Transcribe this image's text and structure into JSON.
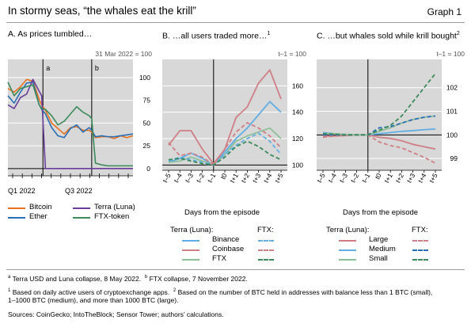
{
  "header": {
    "title": "In stormy seas, “the whales eat the krill”",
    "graph_number": "Graph 1"
  },
  "panels": {
    "a": {
      "title": "A. As prices tumbled…",
      "unit": "31 Mar 2022 = 100"
    },
    "b": {
      "title": "B. …all users traded more…",
      "title_sup": "1",
      "unit": "t–1 = 100",
      "xlabel": "Days from the episode"
    },
    "c": {
      "title": "C. …but whales sold while krill bought",
      "title_sup": "2",
      "unit": "t–1 = 100",
      "xlabel": "Days from the episode"
    }
  },
  "legends": {
    "a": [
      {
        "label": "Bitcoin",
        "color": "#e8711e"
      },
      {
        "label": "Terra (Luna)",
        "color": "#6a3d9a"
      },
      {
        "label": "Ether",
        "color": "#2a6fb5"
      },
      {
        "label": "FTX-token",
        "color": "#3a8a5a"
      }
    ],
    "b": {
      "group_label": "Terra (Luna):",
      "ftx_label": "FTX:",
      "items": [
        {
          "label": "Binance",
          "color": "#62aee3"
        },
        {
          "label": "Coinbase",
          "color": "#cf7f86"
        },
        {
          "label": "FTX",
          "color": "#8fbf99"
        }
      ]
    },
    "c": {
      "group_label": "Terra (Luna):",
      "ftx_label": "FTX:",
      "items": [
        {
          "label": "Large",
          "color": "#cf7f86"
        },
        {
          "label": "Medium",
          "color": "#62aee3"
        },
        {
          "label": "Small",
          "color": "#8fbf99"
        }
      ]
    }
  },
  "notes": {
    "a_mark": "a",
    "a_text": "Terra USD and Luna collapse, 8 May 2022.",
    "b_mark": "b",
    "b_text": "FTX collapse, 7 November 2022.",
    "n1_mark": "1",
    "n1_text": "Based on daily active users of cryptoexchange apps.",
    "n2_mark": "2",
    "n2_text": "Based on the number of BTC held in addresses with balance less than 1 BTC (small),",
    "n2_text2": "1–1000 BTC (medium), and more than 1000 BTC (large).",
    "sources": "Sources: CoinGecko; IntoTheBlock; Sensor Tower; authors’ calculations."
  },
  "chart_data": [
    {
      "type": "line",
      "title": "A. As prices tumbled…",
      "unit": "31 Mar 2022 = 100",
      "x_tick_labels": [
        "Q1 2022",
        "Q3 2022"
      ],
      "ylim": [
        -8,
        120
      ],
      "y_ticks": [
        0,
        25,
        50,
        75,
        100
      ],
      "grid": true,
      "event_lines": [
        {
          "label": "a",
          "x": 0.28
        },
        {
          "label": "b",
          "x": 0.67
        }
      ],
      "x": [
        0,
        0.05,
        0.1,
        0.15,
        0.2,
        0.25,
        0.27,
        0.3,
        0.35,
        0.4,
        0.45,
        0.5,
        0.55,
        0.6,
        0.65,
        0.67,
        0.7,
        0.75,
        0.8,
        0.85,
        0.9,
        0.95,
        1.0
      ],
      "series": [
        {
          "name": "Bitcoin",
          "color": "#e8711e",
          "values": [
            88,
            84,
            90,
            98,
            96,
            76,
            70,
            64,
            50,
            44,
            38,
            45,
            46,
            42,
            42,
            40,
            34,
            35,
            35,
            33,
            36,
            34,
            36
          ]
        },
        {
          "name": "Ether",
          "color": "#2a6fb5",
          "values": [
            80,
            72,
            84,
            94,
            95,
            70,
            65,
            60,
            45,
            36,
            34,
            44,
            48,
            40,
            45,
            42,
            35,
            36,
            35,
            35,
            36,
            37,
            38
          ]
        },
        {
          "name": "Terra (Luna)",
          "color": "#6a3d9a",
          "values": [
            70,
            66,
            78,
            82,
            98,
            85,
            80,
            0,
            0,
            0,
            0,
            0,
            0,
            0,
            0,
            0,
            0,
            0,
            0,
            0,
            0,
            0,
            0
          ]
        },
        {
          "name": "FTX-token",
          "color": "#3a8a5a",
          "values": [
            95,
            80,
            88,
            90,
            92,
            70,
            66,
            65,
            58,
            48,
            52,
            60,
            68,
            62,
            58,
            55,
            6,
            4,
            3,
            3,
            3,
            3,
            3
          ]
        }
      ]
    },
    {
      "type": "line",
      "title": "B. …all users traded more…",
      "unit": "t–1 = 100",
      "xlabel": "Days from the episode",
      "categories": [
        "t–5",
        "t–4",
        "t–3",
        "t–2",
        "t–1",
        "t0",
        "t+1",
        "t+2",
        "t+3",
        "t+4",
        "t+5"
      ],
      "ylim": [
        96,
        180
      ],
      "y_ticks": [
        100,
        120,
        140,
        160
      ],
      "grid": true,
      "series": [
        {
          "name": "Terra (Luna): Binance",
          "color": "#62aee3",
          "dash": false,
          "values": [
            102,
            105,
            109,
            105,
            100,
            110,
            120,
            128,
            138,
            148,
            140
          ]
        },
        {
          "name": "Terra (Luna): Coinbase",
          "color": "#cf7f86",
          "dash": false,
          "values": [
            115,
            126,
            126,
            112,
            101,
            112,
            136,
            144,
            162,
            172,
            150
          ]
        },
        {
          "name": "Terra (Luna): FTX",
          "color": "#8fbf99",
          "dash": false,
          "values": [
            102,
            103,
            106,
            103,
            100,
            108,
            118,
            122,
            125,
            128,
            120
          ]
        },
        {
          "name": "FTX: Binance",
          "color": "#62aee3",
          "dash": true,
          "values": [
            103,
            106,
            104,
            102,
            100,
            108,
            115,
            120,
            124,
            118,
            108
          ]
        },
        {
          "name": "FTX: Coinbase",
          "color": "#cf7f86",
          "dash": true,
          "values": [
            117,
            107,
            109,
            106,
            100,
            112,
            125,
            132,
            128,
            122,
            113
          ]
        },
        {
          "name": "FTX: FTX",
          "color": "#3a8a5a",
          "dash": true,
          "values": [
            104,
            105,
            103,
            101,
            100,
            106,
            114,
            118,
            114,
            108,
            104
          ]
        }
      ]
    },
    {
      "type": "line",
      "title": "C. …but whales sold while krill bought",
      "unit": "t–1 = 100",
      "xlabel": "Days from the episode",
      "categories": [
        "t–5",
        "t–4",
        "t–3",
        "t–2",
        "t–1",
        "t0",
        "t+1",
        "t+2",
        "t+3",
        "t+4",
        "t+5"
      ],
      "ylim": [
        98.5,
        103.2
      ],
      "y_ticks": [
        99,
        100,
        101,
        102
      ],
      "grid": true,
      "series": [
        {
          "name": "Terra (Luna): Large",
          "color": "#cf7f86",
          "dash": false,
          "values": [
            99.95,
            99.95,
            99.97,
            100.0,
            100.0,
            99.9,
            99.85,
            99.75,
            99.6,
            99.5,
            99.4
          ]
        },
        {
          "name": "Terra (Luna): Medium",
          "color": "#62aee3",
          "dash": false,
          "values": [
            100.1,
            100.05,
            100.02,
            100.0,
            100.0,
            100.05,
            100.1,
            100.15,
            100.18,
            100.22,
            100.25
          ]
        },
        {
          "name": "Terra (Luna): Small",
          "color": "#8fbf99",
          "dash": false,
          "values": [
            100.05,
            100.05,
            100.02,
            100.0,
            100.0,
            100.15,
            100.3,
            100.5,
            100.65,
            100.75,
            100.8
          ]
        },
        {
          "name": "FTX: Large",
          "color": "#cf7f86",
          "dash": true,
          "values": [
            99.9,
            99.95,
            99.98,
            100.0,
            100.0,
            99.7,
            99.55,
            99.45,
            99.25,
            99.05,
            98.8
          ]
        },
        {
          "name": "FTX: Medium",
          "color": "#2a6fb5",
          "dash": true,
          "values": [
            100.0,
            100.0,
            100.0,
            100.0,
            100.0,
            100.3,
            100.35,
            100.5,
            100.65,
            100.75,
            100.8
          ]
        },
        {
          "name": "FTX: Small",
          "color": "#3a8a5a",
          "dash": true,
          "values": [
            100.05,
            100.03,
            100.0,
            100.0,
            100.0,
            100.2,
            100.4,
            100.8,
            101.4,
            102.0,
            102.6
          ]
        }
      ]
    }
  ]
}
